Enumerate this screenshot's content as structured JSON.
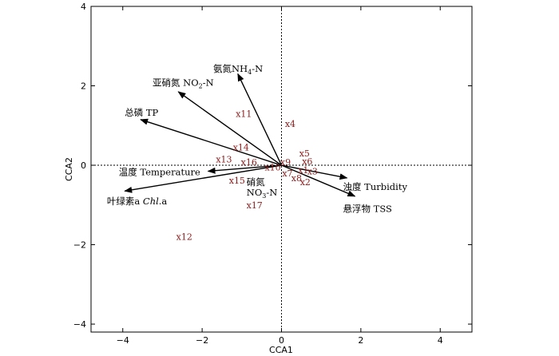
{
  "chart_data": {
    "type": "scatter",
    "title": "",
    "xlabel": "CCA1",
    "ylabel": "CCA2",
    "xlim": [
      -4.8,
      4.8
    ],
    "ylim": [
      -4.2,
      4.0
    ],
    "xticks": [
      -4,
      -2,
      0,
      2,
      4
    ],
    "yticks": [
      -4,
      -2,
      0,
      2,
      4
    ],
    "x_tick_labels": [
      "−4",
      "−2",
      "0",
      "2",
      "4"
    ],
    "y_tick_labels": [
      "−4",
      "−2",
      "0",
      "2",
      "4"
    ],
    "grid": false,
    "origin_lines": "dotted",
    "colors": {
      "sites": "#8b1a1a",
      "arrows": "#000000"
    },
    "environment_arrows": [
      {
        "id": "nh4",
        "label": "氨氮NH",
        "sub": "4",
        "suffix": "-N",
        "x": -1.1,
        "y": 2.3,
        "label_x": -1.72,
        "label_y": 2.35
      },
      {
        "id": "no2",
        "label": "亚硝氮 NO",
        "sub": "2",
        "suffix": "-N",
        "x": -2.6,
        "y": 1.85,
        "label_x": -3.25,
        "label_y": 2.0
      },
      {
        "id": "tp",
        "label": "总磷 TP",
        "sub": "",
        "suffix": "",
        "x": -3.55,
        "y": 1.15,
        "label_x": -3.95,
        "label_y": 1.25
      },
      {
        "id": "temp",
        "label": "温度 Temperature",
        "sub": "",
        "suffix": "",
        "x": -1.85,
        "y": -0.15,
        "label_x": -4.1,
        "label_y": -0.25
      },
      {
        "id": "chl",
        "label": "叶绿素a ",
        "italic": "Chl",
        "suffix": ".a",
        "x": -3.95,
        "y": -0.65,
        "label_x": -4.4,
        "label_y": -0.98
      },
      {
        "id": "turb",
        "label": "浊度 Turbidity",
        "sub": "",
        "suffix": "",
        "x": 1.65,
        "y": -0.32,
        "label_x": 1.55,
        "label_y": -0.62
      },
      {
        "id": "tss",
        "label": "悬浮物 TSS",
        "sub": "",
        "suffix": "",
        "x": 1.85,
        "y": -0.78,
        "label_x": 1.55,
        "label_y": -1.18
      }
    ],
    "no3_label": {
      "line1": "硝氮",
      "line2": "NO",
      "sub": "3",
      "suffix": "-N",
      "x": -0.88,
      "y": -0.5
    },
    "sites": [
      {
        "label": "x1",
        "x": 0.55,
        "y": -0.12
      },
      {
        "label": "x2",
        "x": 0.6,
        "y": -0.42
      },
      {
        "label": "x3",
        "x": 0.78,
        "y": -0.15
      },
      {
        "label": "x4",
        "x": 0.22,
        "y": 1.05
      },
      {
        "label": "x5",
        "x": 0.58,
        "y": 0.3
      },
      {
        "label": "x6",
        "x": 0.65,
        "y": 0.1
      },
      {
        "label": "x7",
        "x": 0.15,
        "y": -0.2
      },
      {
        "label": "x8",
        "x": 0.38,
        "y": -0.32
      },
      {
        "label": "x9",
        "x": 0.1,
        "y": 0.08
      },
      {
        "label": "x10",
        "x": -0.22,
        "y": -0.05
      },
      {
        "label": "x11",
        "x": -0.95,
        "y": 1.3
      },
      {
        "label": "x12",
        "x": -2.45,
        "y": -1.8
      },
      {
        "label": "x13",
        "x": -1.45,
        "y": 0.15
      },
      {
        "label": "x14",
        "x": -1.02,
        "y": 0.45
      },
      {
        "label": "x15",
        "x": -1.12,
        "y": -0.38
      },
      {
        "label": "x16",
        "x": -0.82,
        "y": 0.08
      },
      {
        "label": "x17",
        "x": -0.68,
        "y": -1.0
      }
    ]
  }
}
